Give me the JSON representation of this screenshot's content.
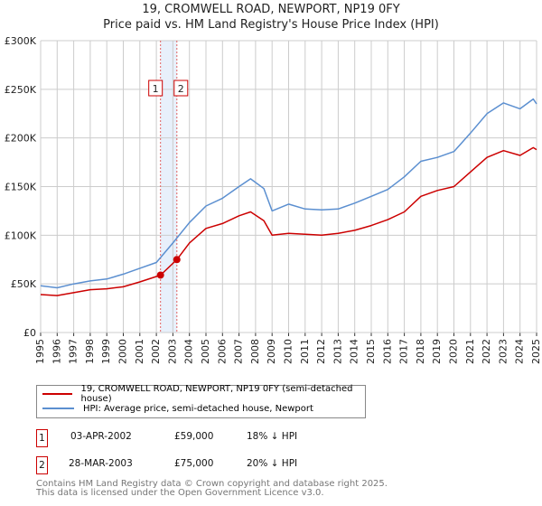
{
  "title": "19, CROMWELL ROAD, NEWPORT, NP19 0FY",
  "subtitle": "Price paid vs. HM Land Registry's House Price Index (HPI)",
  "colors": {
    "property": "#cc0000",
    "hpi": "#5b8fd0",
    "shade": "#e8f0fb",
    "grid": "#cccccc"
  },
  "chart_data": {
    "type": "line",
    "title": "Price paid vs. HM Land Registry's House Price Index (HPI)",
    "xlim": [
      1995,
      2025
    ],
    "ylim": [
      0,
      300000
    ],
    "x_ticks": [
      "1995",
      "1996",
      "1997",
      "1998",
      "1999",
      "2000",
      "2001",
      "2002",
      "2003",
      "2004",
      "2005",
      "2006",
      "2007",
      "2008",
      "2009",
      "2010",
      "2011",
      "2012",
      "2013",
      "2014",
      "2015",
      "2016",
      "2017",
      "2018",
      "2019",
      "2020",
      "2021",
      "2022",
      "2023",
      "2024",
      "2025"
    ],
    "y_ticks": [
      {
        "v": 0,
        "label": "£0"
      },
      {
        "v": 50000,
        "label": "£50K"
      },
      {
        "v": 100000,
        "label": "£100K"
      },
      {
        "v": 150000,
        "label": "£150K"
      },
      {
        "v": 200000,
        "label": "£200K"
      },
      {
        "v": 250000,
        "label": "£250K"
      },
      {
        "v": 300000,
        "label": "£300K"
      }
    ],
    "grid": true,
    "series": [
      {
        "name": "19, CROMWELL ROAD, NEWPORT, NP19 0FY (semi-detached house)",
        "x": [
          1995,
          1996,
          1997,
          1998,
          1999,
          2000,
          2001,
          2002.25,
          2003.24,
          2004,
          2005,
          2006,
          2007,
          2007.7,
          2008.5,
          2009,
          2010,
          2011,
          2012,
          2013,
          2014,
          2015,
          2016,
          2017,
          2018,
          2019,
          2020,
          2021,
          2022,
          2023,
          2024,
          2024.8,
          2025
        ],
        "y": [
          39000,
          38000,
          41000,
          44000,
          45000,
          47000,
          52000,
          59000,
          75000,
          92000,
          107000,
          112000,
          120000,
          124000,
          115000,
          100000,
          102000,
          101000,
          100000,
          102000,
          105000,
          110000,
          116000,
          124000,
          140000,
          146000,
          150000,
          165000,
          180000,
          187000,
          182000,
          190000,
          188000
        ]
      },
      {
        "name": "HPI: Average price, semi-detached house, Newport",
        "x": [
          1995,
          1996,
          1997,
          1998,
          1999,
          2000,
          2001,
          2002,
          2003,
          2004,
          2005,
          2006,
          2007,
          2007.7,
          2008.5,
          2009,
          2010,
          2011,
          2012,
          2013,
          2014,
          2015,
          2016,
          2017,
          2018,
          2019,
          2020,
          2021,
          2022,
          2023,
          2024,
          2024.8,
          2025
        ],
        "y": [
          48000,
          46000,
          50000,
          53000,
          55000,
          60000,
          66000,
          72000,
          92000,
          113000,
          130000,
          138000,
          150000,
          158000,
          148000,
          125000,
          132000,
          127000,
          126000,
          127000,
          133000,
          140000,
          147000,
          160000,
          176000,
          180000,
          186000,
          205000,
          225000,
          236000,
          230000,
          240000,
          235000
        ]
      }
    ],
    "sales": [
      {
        "id": "1",
        "x": 2002.25,
        "y": 59000,
        "date": "03-APR-2002",
        "price": "£59,000",
        "hpi_diff": "18% ↓ HPI"
      },
      {
        "id": "2",
        "x": 2003.24,
        "y": 75000,
        "date": "28-MAR-2003",
        "price": "£75,000",
        "hpi_diff": "20% ↓ HPI"
      }
    ]
  },
  "legend": {
    "property": "19, CROMWELL ROAD, NEWPORT, NP19 0FY (semi-detached house)",
    "hpi": "HPI: Average price, semi-detached house, Newport"
  },
  "footer": {
    "line1": "Contains HM Land Registry data © Crown copyright and database right 2025.",
    "line2": "This data is licensed under the Open Government Licence v3.0."
  }
}
